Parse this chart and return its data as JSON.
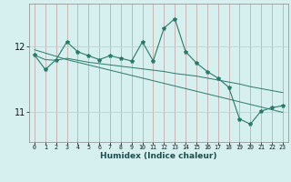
{
  "title": "",
  "xlabel": "Humidex (Indice chaleur)",
  "ylabel": "",
  "bg_color": "#d6efef",
  "line_color": "#2a7a6a",
  "grid_v_color": "#c8aaaa",
  "grid_h_color": "#b8d4d4",
  "x": [
    0,
    1,
    2,
    3,
    4,
    5,
    6,
    7,
    8,
    9,
    10,
    11,
    12,
    13,
    14,
    15,
    16,
    17,
    18,
    19,
    20,
    21,
    22,
    23
  ],
  "y_main": [
    11.87,
    11.65,
    11.8,
    12.07,
    11.92,
    11.86,
    11.8,
    11.86,
    11.82,
    11.78,
    12.07,
    11.78,
    12.28,
    12.42,
    11.92,
    11.75,
    11.62,
    11.52,
    11.38,
    10.9,
    10.82,
    11.02,
    11.07,
    11.1
  ],
  "y_trend1": [
    11.87,
    11.8,
    11.79,
    11.82,
    11.79,
    11.76,
    11.74,
    11.72,
    11.7,
    11.68,
    11.66,
    11.64,
    11.62,
    11.59,
    11.57,
    11.55,
    11.52,
    11.49,
    11.46,
    11.43,
    11.39,
    11.36,
    11.33,
    11.3
  ],
  "y_trend2": [
    11.95,
    11.9,
    11.85,
    11.8,
    11.76,
    11.72,
    11.68,
    11.64,
    11.6,
    11.56,
    11.52,
    11.48,
    11.44,
    11.4,
    11.36,
    11.32,
    11.28,
    11.24,
    11.2,
    11.16,
    11.12,
    11.08,
    11.04,
    11.0
  ],
  "ylim": [
    10.55,
    12.65
  ],
  "yticks": [
    11,
    12
  ],
  "xticks": [
    0,
    1,
    2,
    3,
    4,
    5,
    6,
    7,
    8,
    9,
    10,
    11,
    12,
    13,
    14,
    15,
    16,
    17,
    18,
    19,
    20,
    21,
    22,
    23
  ],
  "figsize": [
    3.2,
    2.0
  ],
  "dpi": 100
}
